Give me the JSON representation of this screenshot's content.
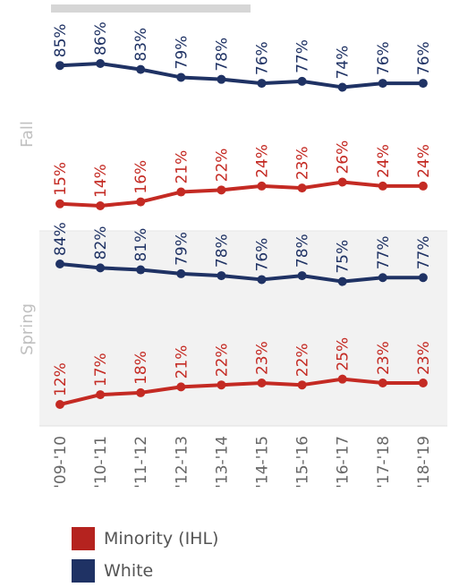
{
  "chart_data": {
    "type": "line",
    "categories": [
      "'09-'10",
      "'10-'11",
      "'11-'12",
      "'12-'13",
      "'13-'14",
      "'14-'15",
      "'15-'16",
      "'16-'17",
      "'17-'18",
      "'18-'19"
    ],
    "ylim": [
      0,
      100
    ],
    "panels": [
      {
        "name": "Fall",
        "series": [
          {
            "name": "White",
            "values": [
              85,
              86,
              83,
              79,
              78,
              76,
              77,
              74,
              76,
              76
            ],
            "labels": [
              "85%",
              "86%",
              "83%",
              "79%",
              "78%",
              "76%",
              "77%",
              "74%",
              "76%",
              "76%"
            ]
          },
          {
            "name": "Minority (IHL)",
            "values": [
              15,
              14,
              16,
              21,
              22,
              24,
              23,
              26,
              24,
              24
            ],
            "labels": [
              "15%",
              "14%",
              "16%",
              "21%",
              "22%",
              "24%",
              "23%",
              "26%",
              "24%",
              "24%"
            ]
          }
        ]
      },
      {
        "name": "Spring",
        "series": [
          {
            "name": "White",
            "values": [
              84,
              82,
              81,
              79,
              78,
              76,
              78,
              75,
              77,
              77
            ],
            "labels": [
              "84%",
              "82%",
              "81%",
              "79%",
              "78%",
              "76%",
              "78%",
              "75%",
              "77%",
              "77%"
            ]
          },
          {
            "name": "Minority (IHL)",
            "values": [
              12,
              17,
              18,
              21,
              22,
              23,
              22,
              25,
              23,
              23
            ],
            "labels": [
              "12%",
              "17%",
              "18%",
              "21%",
              "22%",
              "23%",
              "22%",
              "25%",
              "23%",
              "23%"
            ]
          }
        ]
      }
    ],
    "legend": {
      "placement": "bottom-left",
      "entries": [
        {
          "name": "Minority (IHL)",
          "color": "#b5231f"
        },
        {
          "name": "White",
          "color": "#1f3264"
        }
      ]
    },
    "colors": {
      "White": "#1f3264",
      "Minority (IHL)": "#c42a23"
    },
    "grid": false
  }
}
